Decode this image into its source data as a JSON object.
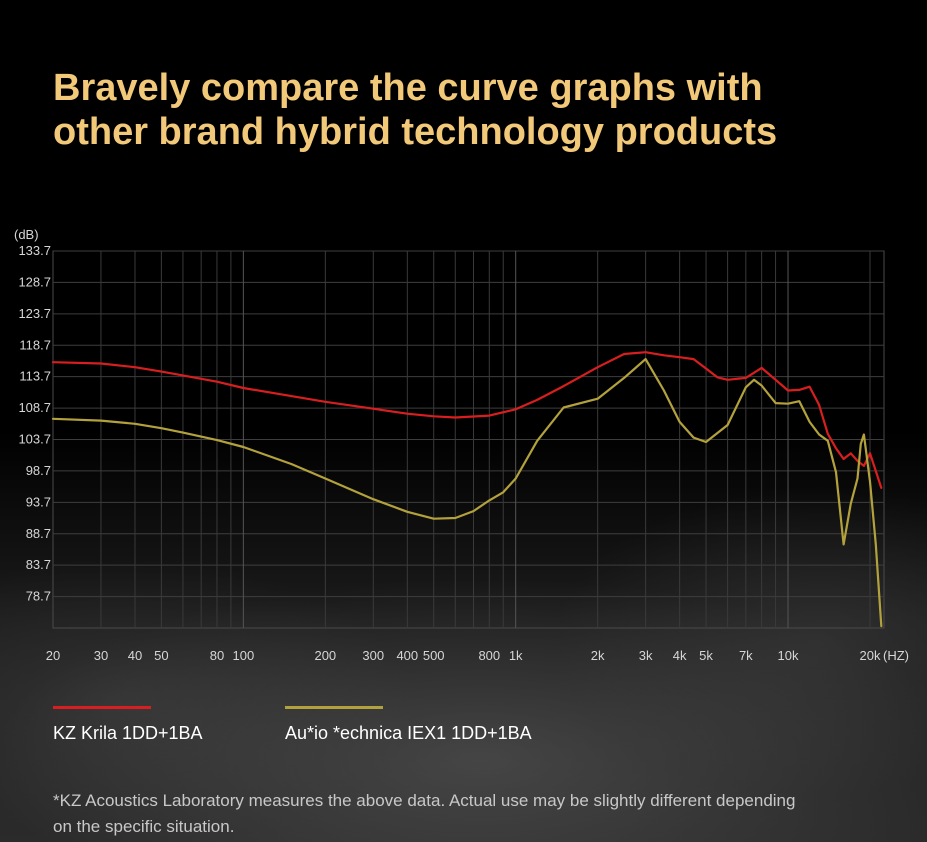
{
  "headline": {
    "line1": "Bravely compare the curve graphs with",
    "line2": "other brand hybrid technology products"
  },
  "chart_data": {
    "type": "line",
    "x_scale": "log",
    "xlim": [
      20,
      20000
    ],
    "ylim": [
      73.7,
      133.7
    ],
    "ylabel": "(dB)",
    "xlabel": "(HZ)",
    "grid": true,
    "y_ticks": [
      "133.7",
      "128.7",
      "123.7",
      "118.7",
      "113.7",
      "108.7",
      "103.7",
      "98.7",
      "93.7",
      "88.7",
      "83.7",
      "78.7"
    ],
    "x_ticks": [
      {
        "value": 20,
        "label": "20"
      },
      {
        "value": 30,
        "label": "30"
      },
      {
        "value": 40,
        "label": "40"
      },
      {
        "value": 50,
        "label": "50"
      },
      {
        "value": 80,
        "label": "80"
      },
      {
        "value": 100,
        "label": "100"
      },
      {
        "value": 200,
        "label": "200"
      },
      {
        "value": 300,
        "label": "300"
      },
      {
        "value": 400,
        "label": "400"
      },
      {
        "value": 500,
        "label": "500"
      },
      {
        "value": 800,
        "label": "800"
      },
      {
        "value": 1000,
        "label": "1k"
      },
      {
        "value": 2000,
        "label": "2k"
      },
      {
        "value": 3000,
        "label": "3k"
      },
      {
        "value": 4000,
        "label": "4k"
      },
      {
        "value": 5000,
        "label": "5k"
      },
      {
        "value": 7000,
        "label": "7k"
      },
      {
        "value": 10000,
        "label": "10k"
      },
      {
        "value": 20000,
        "label": "20k"
      }
    ],
    "series": [
      {
        "name": "KZ Krila 1DD+1BA",
        "color": "#d81e1e",
        "points": [
          [
            20,
            116.0
          ],
          [
            30,
            115.8
          ],
          [
            40,
            115.2
          ],
          [
            50,
            114.5
          ],
          [
            60,
            113.9
          ],
          [
            80,
            112.9
          ],
          [
            100,
            111.9
          ],
          [
            150,
            110.6
          ],
          [
            200,
            109.7
          ],
          [
            300,
            108.6
          ],
          [
            400,
            107.8
          ],
          [
            500,
            107.4
          ],
          [
            600,
            107.2
          ],
          [
            800,
            107.5
          ],
          [
            1000,
            108.5
          ],
          [
            1200,
            110.0
          ],
          [
            1500,
            112.2
          ],
          [
            2000,
            115.2
          ],
          [
            2500,
            117.3
          ],
          [
            3000,
            117.6
          ],
          [
            3500,
            117.1
          ],
          [
            4000,
            116.8
          ],
          [
            4500,
            116.5
          ],
          [
            5000,
            115.0
          ],
          [
            5500,
            113.6
          ],
          [
            6000,
            113.2
          ],
          [
            7000,
            113.5
          ],
          [
            8000,
            115.1
          ],
          [
            9000,
            113.2
          ],
          [
            10000,
            111.5
          ],
          [
            11000,
            111.6
          ],
          [
            12000,
            112.1
          ],
          [
            13000,
            109.2
          ],
          [
            14000,
            104.6
          ],
          [
            15000,
            102.3
          ],
          [
            16000,
            100.6
          ],
          [
            17000,
            101.5
          ],
          [
            18000,
            100.3
          ],
          [
            19000,
            99.5
          ],
          [
            20000,
            101.5
          ],
          [
            22000,
            96.0
          ]
        ]
      },
      {
        "name": "Au*io *echnica IEX1 1DD+1BA",
        "color": "#b3a23c",
        "points": [
          [
            20,
            107.0
          ],
          [
            30,
            106.7
          ],
          [
            40,
            106.2
          ],
          [
            50,
            105.5
          ],
          [
            60,
            104.8
          ],
          [
            80,
            103.6
          ],
          [
            100,
            102.5
          ],
          [
            150,
            99.8
          ],
          [
            200,
            97.5
          ],
          [
            300,
            94.2
          ],
          [
            400,
            92.2
          ],
          [
            500,
            91.1
          ],
          [
            600,
            91.2
          ],
          [
            700,
            92.3
          ],
          [
            800,
            94.0
          ],
          [
            900,
            95.3
          ],
          [
            1000,
            97.5
          ],
          [
            1200,
            103.5
          ],
          [
            1500,
            108.8
          ],
          [
            2000,
            110.2
          ],
          [
            2500,
            113.5
          ],
          [
            3000,
            116.5
          ],
          [
            3500,
            111.5
          ],
          [
            4000,
            106.5
          ],
          [
            4500,
            104.0
          ],
          [
            5000,
            103.3
          ],
          [
            6000,
            106.0
          ],
          [
            7000,
            112.0
          ],
          [
            7500,
            113.2
          ],
          [
            8000,
            112.3
          ],
          [
            9000,
            109.5
          ],
          [
            10000,
            109.4
          ],
          [
            11000,
            109.8
          ],
          [
            12000,
            106.5
          ],
          [
            13000,
            104.5
          ],
          [
            14000,
            103.5
          ],
          [
            15000,
            98.5
          ],
          [
            16000,
            87.0
          ],
          [
            17000,
            93.5
          ],
          [
            18000,
            97.5
          ],
          [
            18500,
            103.0
          ],
          [
            19000,
            104.5
          ],
          [
            20000,
            97.0
          ],
          [
            21000,
            87.0
          ],
          [
            22000,
            74.0
          ]
        ]
      }
    ]
  },
  "footnote": {
    "line1": "*KZ Acoustics Laboratory measures the above data. Actual use may be slightly different depending",
    "line2": "on the specific situation."
  }
}
